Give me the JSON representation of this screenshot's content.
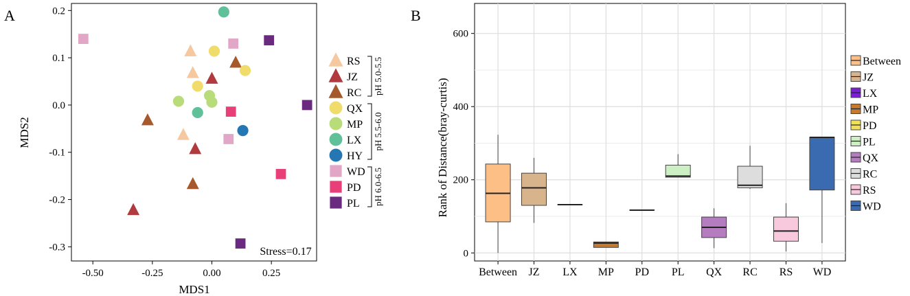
{
  "chart_data": [
    {
      "type": "scatter",
      "panel_label": "A",
      "xlabel": "MDS1",
      "ylabel": "MDS2",
      "xlim": [
        -0.59,
        0.44
      ],
      "ylim": [
        -0.33,
        0.215
      ],
      "x_ticks": [
        -0.5,
        -0.25,
        0.0,
        0.25
      ],
      "x_tick_labels": [
        "-0.50",
        "-0.25",
        "0.00",
        "0.25"
      ],
      "y_ticks": [
        0.2,
        0.1,
        0.0,
        -0.1,
        -0.2,
        -0.3
      ],
      "y_tick_labels": [
        "0.2",
        "0.1",
        "0.0",
        "-0.1",
        "-0.2",
        "-0.3"
      ],
      "annotation": "Stress=0.17",
      "grid": false,
      "series": [
        {
          "name": "RS",
          "shape": "triangle",
          "color": "#F5C8A0",
          "points": [
            [
              -0.09,
              0.114
            ],
            [
              -0.08,
              0.068
            ],
            [
              -0.12,
              -0.063
            ]
          ]
        },
        {
          "name": "JZ",
          "shape": "triangle",
          "color": "#B03A3E",
          "points": [
            [
              0.0,
              0.056
            ],
            [
              -0.07,
              -0.093
            ],
            [
              -0.33,
              -0.222
            ]
          ]
        },
        {
          "name": "RC",
          "shape": "triangle",
          "color": "#A65A2C",
          "points": [
            [
              0.1,
              0.09
            ],
            [
              -0.27,
              -0.032
            ],
            [
              -0.08,
              -0.167
            ]
          ]
        },
        {
          "name": "QX",
          "shape": "circle",
          "color": "#F0DC6A",
          "points": [
            [
              0.01,
              0.114
            ],
            [
              0.14,
              0.073
            ],
            [
              -0.06,
              0.04
            ]
          ]
        },
        {
          "name": "MP",
          "shape": "circle",
          "color": "#B8DC7A",
          "points": [
            [
              -0.14,
              0.008
            ],
            [
              -0.01,
              0.02
            ],
            [
              0.0,
              0.006
            ]
          ]
        },
        {
          "name": "LX",
          "shape": "circle",
          "color": "#5FC09A",
          "points": [
            [
              0.05,
              0.197
            ],
            [
              -0.06,
              -0.016
            ]
          ]
        },
        {
          "name": "HY",
          "shape": "circle",
          "color": "#2477B2",
          "points": [
            [
              0.13,
              -0.054
            ]
          ]
        },
        {
          "name": "WD",
          "shape": "square",
          "color": "#E2A6C6",
          "points": [
            [
              -0.54,
              0.14
            ],
            [
              0.09,
              0.13
            ],
            [
              0.07,
              -0.072
            ]
          ]
        },
        {
          "name": "PD",
          "shape": "square",
          "color": "#E83F78",
          "points": [
            [
              0.08,
              -0.014
            ],
            [
              0.29,
              -0.146
            ]
          ]
        },
        {
          "name": "PL",
          "shape": "square",
          "color": "#6A2A80",
          "points": [
            [
              0.24,
              0.137
            ],
            [
              0.4,
              0.0
            ],
            [
              0.12,
              -0.293
            ]
          ]
        }
      ],
      "legend": [
        {
          "label": "RS",
          "shape": "triangle",
          "color": "#F5C8A0"
        },
        {
          "label": "JZ",
          "shape": "triangle",
          "color": "#B03A3E"
        },
        {
          "label": "RC",
          "shape": "triangle",
          "color": "#A65A2C"
        },
        {
          "label": "QX",
          "shape": "circle",
          "color": "#F0DC6A"
        },
        {
          "label": "MP",
          "shape": "circle",
          "color": "#B8DC7A"
        },
        {
          "label": "LX",
          "shape": "circle",
          "color": "#5FC09A"
        },
        {
          "label": "HY",
          "shape": "circle",
          "color": "#2477B2"
        },
        {
          "label": "WD",
          "shape": "square",
          "color": "#E2A6C6"
        },
        {
          "label": "PD",
          "shape": "square",
          "color": "#E83F78"
        },
        {
          "label": "PL",
          "shape": "square",
          "color": "#6A2A80"
        }
      ],
      "legend_groups": [
        {
          "label": "pH 5.0-5.5",
          "from": 0,
          "to": 2
        },
        {
          "label": "pH 5.5-6.0",
          "from": 3,
          "to": 6
        },
        {
          "label": "pH 6.0-6.5",
          "from": 7,
          "to": 9
        }
      ]
    },
    {
      "type": "boxplot",
      "panel_label": "B",
      "xlabel": "",
      "ylabel": "Rank of Distance(bray-curtis)",
      "ylim": [
        -22,
        682
      ],
      "y_ticks": [
        0,
        200,
        400,
        600
      ],
      "y_tick_labels": [
        "0",
        "200",
        "400",
        "600"
      ],
      "grid": true,
      "categories": [
        "Between",
        "JZ",
        "LX",
        "MP",
        "PD",
        "PL",
        "QX",
        "RC",
        "RS",
        "WD"
      ],
      "boxes": [
        {
          "name": "Between",
          "color": "#FDBF86",
          "min": 0,
          "q1": 85,
          "median": 163,
          "q3": 243,
          "max": 323
        },
        {
          "name": "JZ",
          "color": "#D8B48C",
          "min": 82,
          "q1": 130,
          "median": 178,
          "q3": 218,
          "max": 260
        },
        {
          "name": "LX",
          "color": "#7B1FD6",
          "min": 132,
          "q1": 132,
          "median": 132,
          "q3": 132,
          "max": 132
        },
        {
          "name": "MP",
          "color": "#C57A30",
          "min": 15,
          "q1": 15,
          "median": 27,
          "q3": 30,
          "max": 30
        },
        {
          "name": "PD",
          "color": "#F0E05A",
          "min": 117,
          "q1": 117,
          "median": 117,
          "q3": 117,
          "max": 117
        },
        {
          "name": "PL",
          "color": "#CDEFC4",
          "min": 207,
          "q1": 207,
          "median": 210,
          "q3": 240,
          "max": 270
        },
        {
          "name": "QX",
          "color": "#B57DBF",
          "min": 13,
          "q1": 42,
          "median": 70,
          "q3": 98,
          "max": 122
        },
        {
          "name": "RC",
          "color": "#DDDDDD",
          "min": 175,
          "q1": 178,
          "median": 185,
          "q3": 237,
          "max": 293
        },
        {
          "name": "RS",
          "color": "#F8C8DC",
          "min": 4,
          "q1": 32,
          "median": 60,
          "q3": 98,
          "max": 136
        },
        {
          "name": "WD",
          "color": "#3A6BB0",
          "min": 27,
          "q1": 172,
          "median": 316,
          "q3": 316,
          "max": 316
        }
      ]
    }
  ]
}
